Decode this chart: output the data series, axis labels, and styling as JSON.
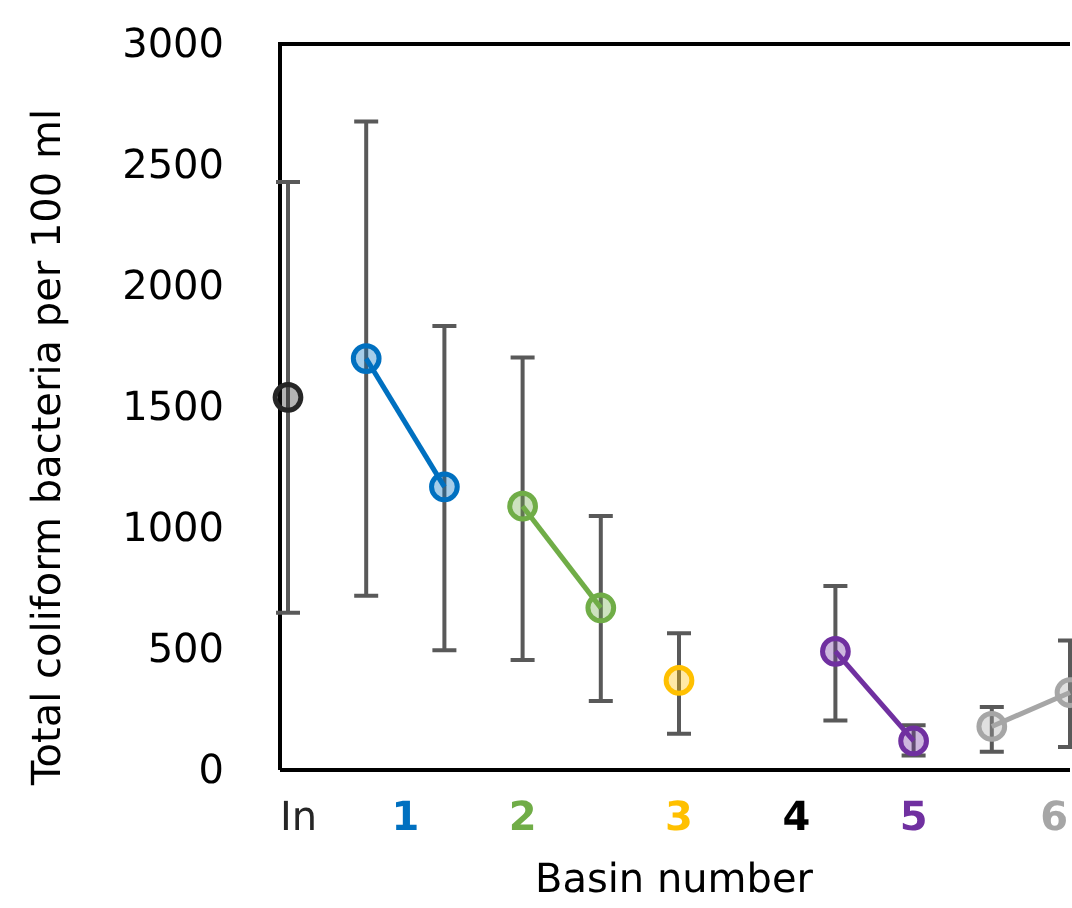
{
  "chart_data": {
    "type": "line",
    "xlabel": "Basin number",
    "ylabel": "Total coliform bacteria per 100 ml",
    "categories": [
      "In",
      null,
      null,
      "1",
      null,
      null,
      "2",
      null,
      null,
      null,
      "3",
      null,
      null,
      "4",
      null,
      null,
      "5",
      null,
      null,
      null,
      "6"
    ],
    "ylim": [
      0,
      3000
    ],
    "yticks": [
      0,
      500,
      1000,
      1500,
      2000,
      2500,
      3000
    ],
    "marker": "circle",
    "grid": false,
    "series": [
      {
        "color": "#262626",
        "values": [
          1540,
          null,
          null,
          null,
          null,
          null,
          null,
          null,
          null,
          null,
          null,
          null,
          null,
          null,
          null,
          null,
          null,
          null,
          null,
          null,
          null
        ],
        "errors": [
          [
            650,
            2430
          ],
          null,
          null,
          null,
          null,
          null,
          null,
          null,
          null,
          null,
          null,
          null,
          null,
          null,
          null,
          null,
          null,
          null,
          null,
          null,
          null
        ]
      },
      {
        "color": "#0070c0",
        "values": [
          null,
          null,
          1700,
          null,
          1170,
          null,
          null,
          null,
          null,
          null,
          null,
          null,
          null,
          null,
          null,
          null,
          null,
          null,
          null,
          null,
          null
        ],
        "errors": [
          null,
          null,
          [
            720,
            2680
          ],
          null,
          [
            495,
            1835
          ],
          null,
          null,
          null,
          null,
          null,
          null,
          null,
          null,
          null,
          null,
          null,
          null,
          null,
          null,
          null,
          null
        ]
      },
      {
        "color": "#70ad47",
        "values": [
          null,
          null,
          null,
          null,
          null,
          null,
          1090,
          null,
          670,
          null,
          null,
          null,
          null,
          null,
          null,
          null,
          null,
          null,
          null,
          null,
          null
        ],
        "errors": [
          null,
          null,
          null,
          null,
          null,
          null,
          [
            455,
            1705
          ],
          null,
          [
            285,
            1050
          ],
          null,
          null,
          null,
          null,
          null,
          null,
          null,
          null,
          null,
          null,
          null,
          null
        ]
      },
      {
        "color": "#ffc000",
        "values": [
          null,
          null,
          null,
          null,
          null,
          null,
          null,
          null,
          null,
          null,
          370,
          null,
          null,
          null,
          null,
          null,
          null,
          null,
          null,
          null,
          null
        ],
        "errors": [
          null,
          null,
          null,
          null,
          null,
          null,
          null,
          null,
          null,
          null,
          [
            150,
            565
          ],
          null,
          null,
          null,
          null,
          null,
          null,
          null,
          null,
          null,
          null
        ]
      },
      {
        "color": "#7030a0",
        "values": [
          null,
          null,
          null,
          null,
          null,
          null,
          null,
          null,
          null,
          null,
          null,
          null,
          null,
          null,
          490,
          null,
          120,
          null,
          null,
          null,
          null
        ],
        "errors": [
          null,
          null,
          null,
          null,
          null,
          null,
          null,
          null,
          null,
          null,
          null,
          null,
          null,
          null,
          [
            205,
            760
          ],
          null,
          [
            60,
            185
          ],
          null,
          null,
          null,
          null
        ]
      },
      {
        "color": "#a6a6a6",
        "values": [
          null,
          null,
          null,
          null,
          null,
          null,
          null,
          null,
          null,
          null,
          null,
          null,
          null,
          null,
          null,
          null,
          null,
          null,
          180,
          null,
          320
        ],
        "errors": [
          null,
          null,
          null,
          null,
          null,
          null,
          null,
          null,
          null,
          null,
          null,
          null,
          null,
          null,
          null,
          null,
          null,
          null,
          [
            75,
            260
          ],
          null,
          [
            95,
            535
          ]
        ]
      }
    ]
  }
}
